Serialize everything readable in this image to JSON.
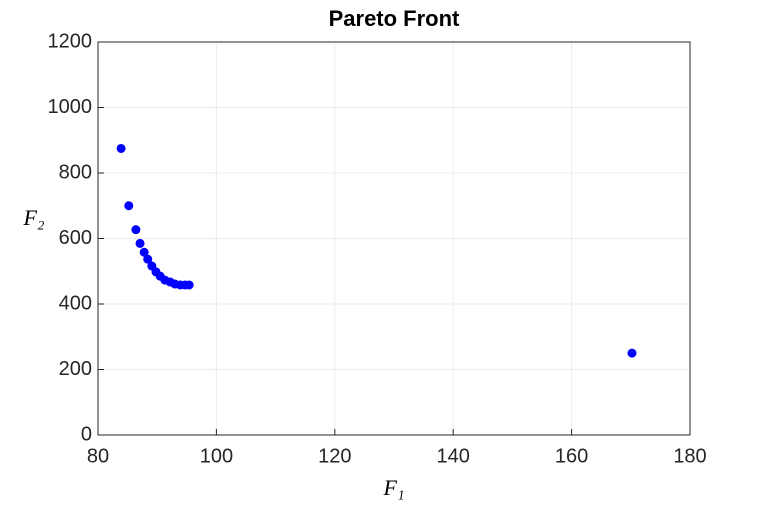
{
  "chart_data": {
    "type": "scatter",
    "title": "Pareto Front",
    "xlabel": "F₁",
    "ylabel": "F₂",
    "series": [
      {
        "color": "#0000ff",
        "x": [
          83.9,
          85.2,
          86.4,
          87.1,
          87.8,
          88.4,
          89.1,
          89.8,
          90.5,
          91.3,
          92.2,
          93.0,
          93.9,
          94.7,
          95.4,
          170.2
        ],
        "values": [
          875,
          700,
          627,
          585,
          558,
          537,
          516,
          498,
          485,
          473,
          467,
          461,
          458,
          458,
          458,
          250
        ]
      }
    ],
    "xlim": [
      80,
      180
    ],
    "xticks": [
      80,
      100,
      120,
      140,
      160,
      180
    ],
    "ylim": [
      0,
      1200
    ],
    "yticks": [
      0,
      200,
      400,
      600,
      800,
      1000,
      1200
    ],
    "grid": true
  }
}
